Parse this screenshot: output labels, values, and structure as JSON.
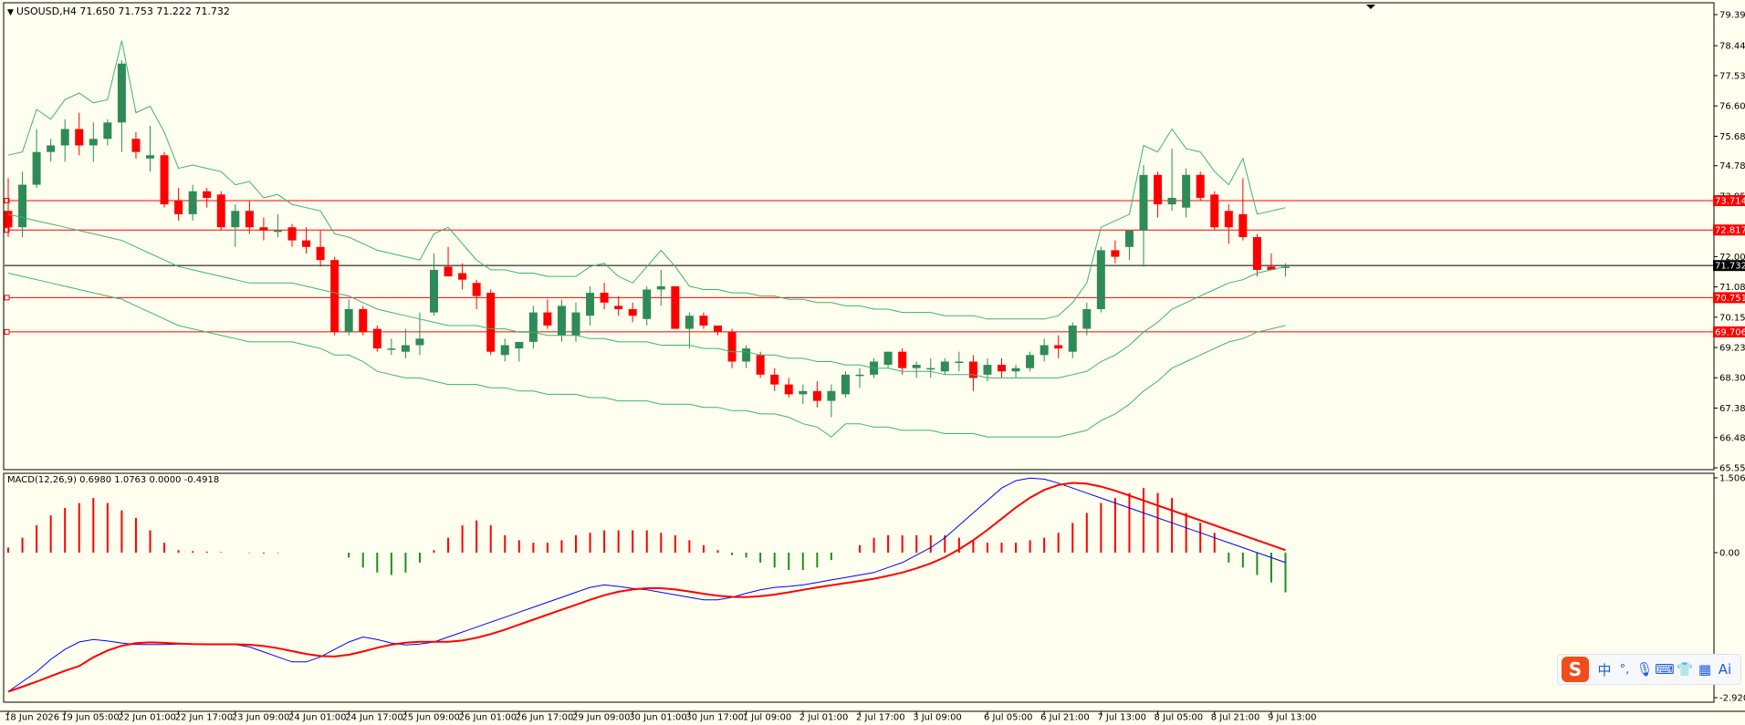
{
  "window": {
    "symbol_line": "USOUSD,H4  71.650 71.753 71.222 71.732",
    "indicator_line": "MACD(12,26,9) 0.6980 1.0763 0.0000 -0.4918"
  },
  "colors": {
    "background": "#fffff0",
    "bull_candle": "#2e8b57",
    "bear_candle": "#ff0000",
    "bollinger": "#3cb371",
    "support_resistance": "#ff0000",
    "current_price_line": "#000000",
    "macd_line": "#0000ff",
    "signal_line": "#ff0000",
    "hist_positive": "#ff0000",
    "hist_negative": "#228b22"
  },
  "ime_toolbar": {
    "logo": "S",
    "items": [
      {
        "icon": "chinese-mode-icon",
        "glyph": "中"
      },
      {
        "icon": "punctuation-icon",
        "glyph": "°,"
      },
      {
        "icon": "microphone-icon",
        "glyph": "🎙"
      },
      {
        "icon": "keyboard-icon",
        "glyph": "⌨"
      },
      {
        "icon": "skin-icon",
        "glyph": "👕"
      },
      {
        "icon": "toolbox-icon",
        "glyph": "▦"
      },
      {
        "icon": "ai-icon",
        "glyph": "Ai"
      }
    ]
  },
  "chart_data": {
    "type": "candlestick",
    "symbol": "USOUSD",
    "timeframe": "H4",
    "price_axis": {
      "labels": [
        "79.395",
        "78.445",
        "77.530",
        "76.605",
        "75.680",
        "74.780",
        "73.855",
        "72.005",
        "71.080",
        "70.155",
        "69.230",
        "68.305",
        "67.380",
        "66.480",
        "65.555"
      ],
      "ylim": [
        65.555,
        79.395
      ]
    },
    "macd_axis": {
      "labels": [
        "1.5061",
        "0.00",
        "-2.9208"
      ],
      "ylim": [
        -2.9208,
        1.5061
      ]
    },
    "time_axis": {
      "labels": [
        "18 Jun 2026",
        "19 Jun 05:00",
        "22 Jun 01:00",
        "22 Jun 17:00",
        "23 Jun 09:00",
        "24 Jun 01:00",
        "24 Jun 17:00",
        "25 Jun 09:00",
        "26 Jun 01:00",
        "26 Jun 17:00",
        "29 Jun 09:00",
        "30 Jun 01:00",
        "30 Jun 17:00",
        "1 Jul 09:00",
        "2 Jul 01:00",
        "2 Jul 17:00",
        "3 Jul 09:00",
        "6 Jul 05:00",
        "6 Jul 21:00",
        "7 Jul 13:00",
        "8 Jul 05:00",
        "8 Jul 21:00",
        "9 Jul 13:00"
      ]
    },
    "price_labels": {
      "current": "71.732",
      "levels": [
        {
          "price": 73.714,
          "label": "73.714"
        },
        {
          "price": 72.817,
          "label": "72.817"
        },
        {
          "price": 70.751,
          "label": "70.751"
        },
        {
          "price": 69.706,
          "label": "69.706"
        }
      ]
    },
    "current_price": 71.732,
    "candles": [
      {
        "o": 73.4,
        "h": 74.4,
        "l": 72.6,
        "c": 72.9
      },
      {
        "o": 72.9,
        "h": 74.6,
        "l": 72.6,
        "c": 74.2
      },
      {
        "o": 74.2,
        "h": 75.9,
        "l": 74.1,
        "c": 75.2
      },
      {
        "o": 75.2,
        "h": 75.6,
        "l": 74.9,
        "c": 75.4
      },
      {
        "o": 75.4,
        "h": 76.2,
        "l": 74.9,
        "c": 75.9
      },
      {
        "o": 75.9,
        "h": 76.4,
        "l": 75.1,
        "c": 75.4
      },
      {
        "o": 75.4,
        "h": 76.1,
        "l": 74.9,
        "c": 75.6
      },
      {
        "o": 75.6,
        "h": 76.2,
        "l": 75.4,
        "c": 76.1
      },
      {
        "o": 76.1,
        "h": 78.0,
        "l": 75.2,
        "c": 77.9
      },
      {
        "o": 75.6,
        "h": 75.8,
        "l": 75.0,
        "c": 75.2
      },
      {
        "o": 75.0,
        "h": 76.0,
        "l": 74.6,
        "c": 75.1
      },
      {
        "o": 75.1,
        "h": 75.2,
        "l": 73.5,
        "c": 73.6
      },
      {
        "o": 73.7,
        "h": 74.1,
        "l": 73.1,
        "c": 73.3
      },
      {
        "o": 73.3,
        "h": 74.2,
        "l": 73.1,
        "c": 74.0
      },
      {
        "o": 74.0,
        "h": 74.1,
        "l": 73.5,
        "c": 73.8
      },
      {
        "o": 73.9,
        "h": 74.0,
        "l": 72.8,
        "c": 72.9
      },
      {
        "o": 72.9,
        "h": 73.6,
        "l": 72.3,
        "c": 73.4
      },
      {
        "o": 73.4,
        "h": 73.7,
        "l": 72.7,
        "c": 72.9
      },
      {
        "o": 72.9,
        "h": 73.2,
        "l": 72.5,
        "c": 72.8
      },
      {
        "o": 72.8,
        "h": 73.3,
        "l": 72.6,
        "c": 72.8
      },
      {
        "o": 72.9,
        "h": 73.0,
        "l": 72.3,
        "c": 72.5
      },
      {
        "o": 72.5,
        "h": 72.9,
        "l": 72.1,
        "c": 72.3
      },
      {
        "o": 72.3,
        "h": 72.8,
        "l": 71.7,
        "c": 71.9
      },
      {
        "o": 71.9,
        "h": 72.0,
        "l": 69.6,
        "c": 69.7
      },
      {
        "o": 69.7,
        "h": 70.7,
        "l": 69.6,
        "c": 70.4
      },
      {
        "o": 70.4,
        "h": 70.5,
        "l": 69.6,
        "c": 69.7
      },
      {
        "o": 69.8,
        "h": 69.9,
        "l": 69.1,
        "c": 69.2
      },
      {
        "o": 69.2,
        "h": 69.5,
        "l": 69.0,
        "c": 69.2
      },
      {
        "o": 69.1,
        "h": 69.8,
        "l": 68.9,
        "c": 69.3
      },
      {
        "o": 69.3,
        "h": 70.3,
        "l": 69.0,
        "c": 69.5
      },
      {
        "o": 70.3,
        "h": 72.1,
        "l": 70.2,
        "c": 71.6
      },
      {
        "o": 71.7,
        "h": 72.3,
        "l": 71.5,
        "c": 71.4
      },
      {
        "o": 71.5,
        "h": 71.8,
        "l": 71.0,
        "c": 71.3
      },
      {
        "o": 71.2,
        "h": 71.3,
        "l": 70.4,
        "c": 70.8
      },
      {
        "o": 70.9,
        "h": 71.0,
        "l": 69.0,
        "c": 69.1
      },
      {
        "o": 69.0,
        "h": 69.5,
        "l": 68.8,
        "c": 69.3
      },
      {
        "o": 69.2,
        "h": 69.4,
        "l": 68.8,
        "c": 69.4
      },
      {
        "o": 69.4,
        "h": 70.5,
        "l": 69.2,
        "c": 70.3
      },
      {
        "o": 70.3,
        "h": 70.7,
        "l": 69.8,
        "c": 69.9
      },
      {
        "o": 69.6,
        "h": 70.7,
        "l": 69.4,
        "c": 70.5
      },
      {
        "o": 69.6,
        "h": 70.6,
        "l": 69.4,
        "c": 70.3
      },
      {
        "o": 70.2,
        "h": 71.1,
        "l": 69.9,
        "c": 70.9
      },
      {
        "o": 70.9,
        "h": 71.2,
        "l": 70.4,
        "c": 70.6
      },
      {
        "o": 70.5,
        "h": 70.8,
        "l": 70.2,
        "c": 70.4
      },
      {
        "o": 70.4,
        "h": 70.6,
        "l": 70.0,
        "c": 70.2
      },
      {
        "o": 70.1,
        "h": 71.1,
        "l": 69.9,
        "c": 71.0
      },
      {
        "o": 71.0,
        "h": 71.6,
        "l": 70.5,
        "c": 71.1
      },
      {
        "o": 71.1,
        "h": 71.1,
        "l": 69.8,
        "c": 69.8
      },
      {
        "o": 69.8,
        "h": 70.3,
        "l": 69.2,
        "c": 70.2
      },
      {
        "o": 70.2,
        "h": 70.3,
        "l": 69.8,
        "c": 69.9
      },
      {
        "o": 69.9,
        "h": 69.9,
        "l": 69.6,
        "c": 69.7
      },
      {
        "o": 69.7,
        "h": 69.8,
        "l": 68.6,
        "c": 68.8
      },
      {
        "o": 68.8,
        "h": 69.3,
        "l": 68.6,
        "c": 69.2
      },
      {
        "o": 69.0,
        "h": 69.1,
        "l": 68.3,
        "c": 68.4
      },
      {
        "o": 68.4,
        "h": 68.6,
        "l": 67.9,
        "c": 68.1
      },
      {
        "o": 68.1,
        "h": 68.3,
        "l": 67.7,
        "c": 67.8
      },
      {
        "o": 67.8,
        "h": 68.1,
        "l": 67.5,
        "c": 67.9
      },
      {
        "o": 67.9,
        "h": 68.2,
        "l": 67.4,
        "c": 67.6
      },
      {
        "o": 67.6,
        "h": 68.1,
        "l": 67.1,
        "c": 67.9
      },
      {
        "o": 67.8,
        "h": 68.5,
        "l": 67.7,
        "c": 68.4
      },
      {
        "o": 68.4,
        "h": 68.6,
        "l": 68.0,
        "c": 68.4
      },
      {
        "o": 68.4,
        "h": 68.9,
        "l": 68.3,
        "c": 68.8
      },
      {
        "o": 68.7,
        "h": 69.1,
        "l": 68.6,
        "c": 69.1
      },
      {
        "o": 69.1,
        "h": 69.2,
        "l": 68.4,
        "c": 68.6
      },
      {
        "o": 68.6,
        "h": 68.8,
        "l": 68.3,
        "c": 68.7
      },
      {
        "o": 68.6,
        "h": 68.9,
        "l": 68.3,
        "c": 68.6
      },
      {
        "o": 68.5,
        "h": 68.9,
        "l": 68.4,
        "c": 68.8
      },
      {
        "o": 68.8,
        "h": 69.1,
        "l": 68.5,
        "c": 68.8
      },
      {
        "o": 68.8,
        "h": 69.0,
        "l": 67.9,
        "c": 68.3
      },
      {
        "o": 68.4,
        "h": 68.9,
        "l": 68.2,
        "c": 68.7
      },
      {
        "o": 68.7,
        "h": 68.9,
        "l": 68.3,
        "c": 68.5
      },
      {
        "o": 68.5,
        "h": 68.7,
        "l": 68.3,
        "c": 68.6
      },
      {
        "o": 68.6,
        "h": 69.1,
        "l": 68.5,
        "c": 69.0
      },
      {
        "o": 69.0,
        "h": 69.5,
        "l": 68.8,
        "c": 69.3
      },
      {
        "o": 69.3,
        "h": 69.6,
        "l": 68.9,
        "c": 69.2
      },
      {
        "o": 69.1,
        "h": 70.0,
        "l": 68.9,
        "c": 69.9
      },
      {
        "o": 69.8,
        "h": 70.6,
        "l": 69.6,
        "c": 70.4
      },
      {
        "o": 70.4,
        "h": 72.3,
        "l": 70.3,
        "c": 72.2
      },
      {
        "o": 72.2,
        "h": 72.5,
        "l": 71.8,
        "c": 72.0
      },
      {
        "o": 72.3,
        "h": 72.7,
        "l": 71.9,
        "c": 72.8
      },
      {
        "o": 72.8,
        "h": 74.8,
        "l": 71.7,
        "c": 74.5
      },
      {
        "o": 74.5,
        "h": 74.6,
        "l": 73.2,
        "c": 73.6
      },
      {
        "o": 73.6,
        "h": 75.3,
        "l": 73.4,
        "c": 73.8
      },
      {
        "o": 73.5,
        "h": 74.7,
        "l": 73.2,
        "c": 74.5
      },
      {
        "o": 74.5,
        "h": 74.6,
        "l": 73.7,
        "c": 73.8
      },
      {
        "o": 73.9,
        "h": 74.0,
        "l": 72.8,
        "c": 72.9
      },
      {
        "o": 73.4,
        "h": 73.6,
        "l": 72.4,
        "c": 72.9
      },
      {
        "o": 73.3,
        "h": 74.4,
        "l": 72.5,
        "c": 72.6
      },
      {
        "o": 72.6,
        "h": 72.7,
        "l": 71.4,
        "c": 71.6
      },
      {
        "o": 71.7,
        "h": 72.1,
        "l": 71.6,
        "c": 71.6
      },
      {
        "o": 71.7,
        "h": 71.8,
        "l": 71.4,
        "c": 71.7
      }
    ],
    "bollinger_upper": [
      73.3,
      73.2,
      73.1,
      73.0,
      72.9,
      72.8,
      72.7,
      72.6,
      72.5,
      72.3,
      72.1,
      71.9,
      71.7,
      71.6,
      71.5,
      71.4,
      71.3,
      71.2,
      71.2,
      71.2,
      71.2,
      71.1,
      71.0,
      70.9,
      70.8,
      70.6,
      70.4,
      70.3,
      70.2,
      70.1,
      70.0,
      69.9,
      69.9,
      69.9,
      69.8,
      69.8,
      69.7,
      69.7,
      69.6,
      69.6,
      69.6,
      69.5,
      69.5,
      69.4,
      69.4,
      69.4,
      69.3,
      69.3,
      69.3,
      69.2,
      69.2,
      69.1,
      69.1,
      69.0,
      69.0,
      68.9,
      68.9,
      68.8,
      68.8,
      68.7,
      68.7,
      68.6,
      68.6,
      68.5,
      68.5,
      68.5,
      68.4,
      68.4,
      68.4,
      68.3,
      68.3,
      68.3,
      68.3,
      68.3,
      68.3,
      68.4,
      68.5,
      68.8,
      69.0,
      69.3,
      69.7,
      70.0,
      70.4,
      70.6,
      70.8,
      71.0,
      71.2,
      71.3,
      71.5,
      71.6,
      71.7
    ]
  },
  "macd_data": {
    "histogram": [
      0.1,
      0.3,
      0.55,
      0.75,
      0.9,
      1.0,
      1.1,
      1.0,
      0.85,
      0.7,
      0.45,
      0.2,
      0.05,
      0.03,
      0.02,
      0.01,
      0.0,
      -0.01,
      -0.02,
      -0.01,
      0.0,
      0.0,
      0.0,
      0.0,
      -0.1,
      -0.3,
      -0.4,
      -0.45,
      -0.4,
      -0.2,
      0.05,
      0.3,
      0.55,
      0.65,
      0.55,
      0.35,
      0.25,
      0.2,
      0.2,
      0.25,
      0.35,
      0.4,
      0.45,
      0.45,
      0.45,
      0.45,
      0.4,
      0.35,
      0.25,
      0.15,
      0.05,
      -0.05,
      -0.1,
      -0.2,
      -0.3,
      -0.35,
      -0.35,
      -0.3,
      -0.15,
      0.0,
      0.15,
      0.3,
      0.35,
      0.35,
      0.35,
      0.35,
      0.35,
      0.3,
      0.25,
      0.2,
      0.2,
      0.2,
      0.25,
      0.3,
      0.4,
      0.6,
      0.8,
      1.0,
      1.1,
      1.2,
      1.3,
      1.2,
      1.1,
      0.8,
      0.6,
      0.4,
      -0.2,
      -0.3,
      -0.45,
      -0.6,
      -0.8
    ],
    "macd_line": [
      -2.8,
      -2.6,
      -2.4,
      -2.15,
      -1.95,
      -1.8,
      -1.75,
      -1.78,
      -1.82,
      -1.85,
      -1.85,
      -1.85,
      -1.84,
      -1.84,
      -1.85,
      -1.85,
      -1.85,
      -1.9,
      -2.0,
      -2.1,
      -2.2,
      -2.2,
      -2.1,
      -1.95,
      -1.8,
      -1.7,
      -1.75,
      -1.82,
      -1.86,
      -1.84,
      -1.8,
      -1.7,
      -1.6,
      -1.5,
      -1.4,
      -1.3,
      -1.2,
      -1.1,
      -1.0,
      -0.9,
      -0.8,
      -0.7,
      -0.65,
      -0.68,
      -0.72,
      -0.75,
      -0.8,
      -0.85,
      -0.9,
      -0.95,
      -0.95,
      -0.9,
      -0.82,
      -0.75,
      -0.7,
      -0.68,
      -0.65,
      -0.6,
      -0.55,
      -0.5,
      -0.45,
      -0.4,
      -0.3,
      -0.2,
      -0.05,
      0.1,
      0.3,
      0.55,
      0.8,
      1.05,
      1.3,
      1.45,
      1.5,
      1.48,
      1.4,
      1.3,
      1.2,
      1.1,
      1.0,
      0.9,
      0.8,
      0.7,
      0.6,
      0.5,
      0.4,
      0.3,
      0.2,
      0.1,
      0.0,
      -0.1,
      -0.2
    ]
  }
}
